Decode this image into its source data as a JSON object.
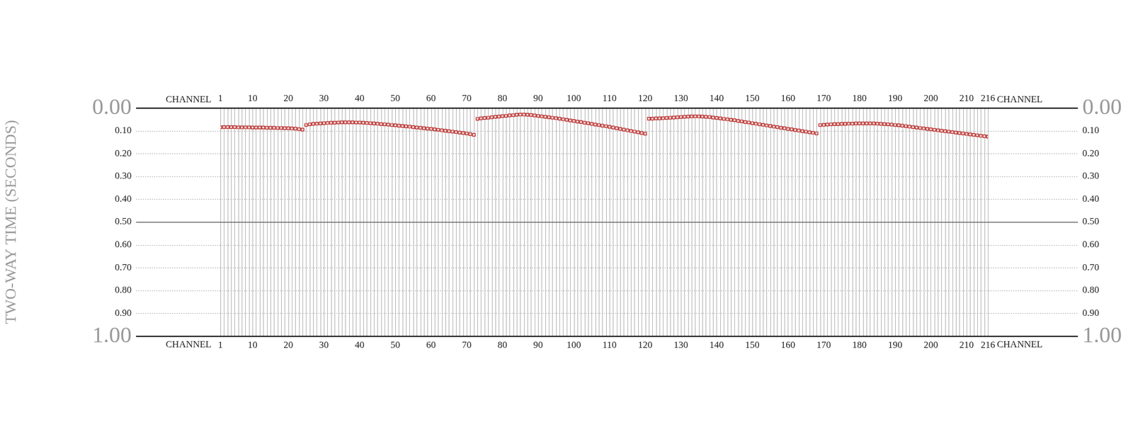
{
  "chart_data": {
    "type": "scatter",
    "y_label": "TWO-WAY TIME (SECONDS)",
    "x_label": "CHANNEL",
    "x": [
      1,
      2,
      3,
      4,
      5,
      6,
      7,
      8,
      9,
      10,
      11,
      12,
      13,
      14,
      15,
      16,
      17,
      18,
      19,
      20,
      21,
      22,
      23,
      24,
      25,
      26,
      27,
      28,
      29,
      30,
      31,
      32,
      33,
      34,
      35,
      36,
      37,
      38,
      39,
      40,
      41,
      42,
      43,
      44,
      45,
      46,
      47,
      48,
      49,
      50,
      51,
      52,
      53,
      54,
      55,
      56,
      57,
      58,
      59,
      60,
      61,
      62,
      63,
      64,
      65,
      66,
      67,
      68,
      69,
      70,
      71,
      72,
      73,
      74,
      75,
      76,
      77,
      78,
      79,
      80,
      81,
      82,
      83,
      84,
      85,
      86,
      87,
      88,
      89,
      90,
      91,
      92,
      93,
      94,
      95,
      96,
      97,
      98,
      99,
      100,
      101,
      102,
      103,
      104,
      105,
      106,
      107,
      108,
      109,
      110,
      111,
      112,
      113,
      114,
      115,
      116,
      117,
      118,
      119,
      120,
      121,
      122,
      123,
      124,
      125,
      126,
      127,
      128,
      129,
      130,
      131,
      132,
      133,
      134,
      135,
      136,
      137,
      138,
      139,
      140,
      141,
      142,
      143,
      144,
      145,
      146,
      147,
      148,
      149,
      150,
      151,
      152,
      153,
      154,
      155,
      156,
      157,
      158,
      159,
      160,
      161,
      162,
      163,
      164,
      165,
      166,
      167,
      168,
      169,
      170,
      171,
      172,
      173,
      174,
      175,
      176,
      177,
      178,
      179,
      180,
      181,
      182,
      183,
      184,
      185,
      186,
      187,
      188,
      189,
      190,
      191,
      192,
      193,
      194,
      195,
      196,
      197,
      198,
      199,
      200,
      201,
      202,
      203,
      204,
      205,
      206,
      207,
      208,
      209,
      210,
      211,
      212,
      213,
      214,
      215,
      216
    ],
    "values": [
      0.085,
      0.084,
      0.084,
      0.084,
      0.084,
      0.085,
      0.085,
      0.085,
      0.085,
      0.086,
      0.086,
      0.086,
      0.086,
      0.087,
      0.087,
      0.087,
      0.088,
      0.088,
      0.089,
      0.089,
      0.09,
      0.091,
      0.093,
      0.095,
      0.075,
      0.072,
      0.07,
      0.069,
      0.068,
      0.067,
      0.066,
      0.065,
      0.065,
      0.064,
      0.063,
      0.063,
      0.063,
      0.063,
      0.064,
      0.064,
      0.065,
      0.066,
      0.067,
      0.068,
      0.069,
      0.071,
      0.072,
      0.073,
      0.075,
      0.076,
      0.078,
      0.079,
      0.081,
      0.082,
      0.084,
      0.086,
      0.087,
      0.089,
      0.091,
      0.092,
      0.094,
      0.096,
      0.098,
      0.1,
      0.102,
      0.104,
      0.106,
      0.108,
      0.11,
      0.112,
      0.115,
      0.118,
      0.048,
      0.046,
      0.044,
      0.043,
      0.041,
      0.039,
      0.038,
      0.036,
      0.035,
      0.033,
      0.032,
      0.03,
      0.029,
      0.029,
      0.03,
      0.031,
      0.033,
      0.035,
      0.037,
      0.039,
      0.041,
      0.043,
      0.045,
      0.047,
      0.05,
      0.052,
      0.055,
      0.057,
      0.06,
      0.062,
      0.065,
      0.067,
      0.07,
      0.073,
      0.075,
      0.078,
      0.08,
      0.083,
      0.086,
      0.089,
      0.092,
      0.095,
      0.098,
      0.101,
      0.104,
      0.107,
      0.11,
      0.113,
      0.047,
      0.047,
      0.046,
      0.046,
      0.045,
      0.044,
      0.043,
      0.042,
      0.041,
      0.04,
      0.039,
      0.038,
      0.037,
      0.037,
      0.037,
      0.038,
      0.039,
      0.04,
      0.042,
      0.044,
      0.046,
      0.048,
      0.05,
      0.052,
      0.054,
      0.057,
      0.059,
      0.062,
      0.064,
      0.067,
      0.069,
      0.072,
      0.074,
      0.077,
      0.079,
      0.082,
      0.084,
      0.087,
      0.089,
      0.092,
      0.094,
      0.097,
      0.099,
      0.102,
      0.104,
      0.107,
      0.109,
      0.112,
      0.075,
      0.074,
      0.073,
      0.072,
      0.071,
      0.071,
      0.07,
      0.07,
      0.069,
      0.069,
      0.068,
      0.068,
      0.068,
      0.068,
      0.068,
      0.068,
      0.069,
      0.07,
      0.071,
      0.072,
      0.073,
      0.075,
      0.076,
      0.078,
      0.08,
      0.082,
      0.084,
      0.086,
      0.088,
      0.09,
      0.092,
      0.094,
      0.096,
      0.098,
      0.1,
      0.102,
      0.104,
      0.106,
      0.108,
      0.11,
      0.112,
      0.114,
      0.116,
      0.118,
      0.12,
      0.122,
      0.124,
      0.126
    ],
    "color": "#b22222",
    "marker": "square",
    "line_style": "none",
    "xlim": [
      1,
      216
    ],
    "xticks": [
      1,
      10,
      20,
      30,
      40,
      50,
      60,
      70,
      80,
      90,
      100,
      110,
      120,
      130,
      140,
      150,
      160,
      170,
      180,
      190,
      200,
      210,
      216
    ],
    "ylim": [
      0,
      1
    ],
    "yticks": [
      {
        "value": 0,
        "label": "0.00"
      },
      {
        "value": 0.1,
        "label": "0.10"
      },
      {
        "value": 0.2,
        "label": "0.20"
      },
      {
        "value": 0.3,
        "label": "0.30"
      },
      {
        "value": 0.4,
        "label": "0.40"
      },
      {
        "value": 0.5,
        "label": "0.50"
      },
      {
        "value": 0.6,
        "label": "0.60"
      },
      {
        "value": 0.7,
        "label": "0.70"
      },
      {
        "value": 0.8,
        "label": "0.80"
      },
      {
        "value": 0.9,
        "label": "0.90"
      },
      {
        "value": 1,
        "label": "1.00"
      }
    ],
    "grid": true
  }
}
